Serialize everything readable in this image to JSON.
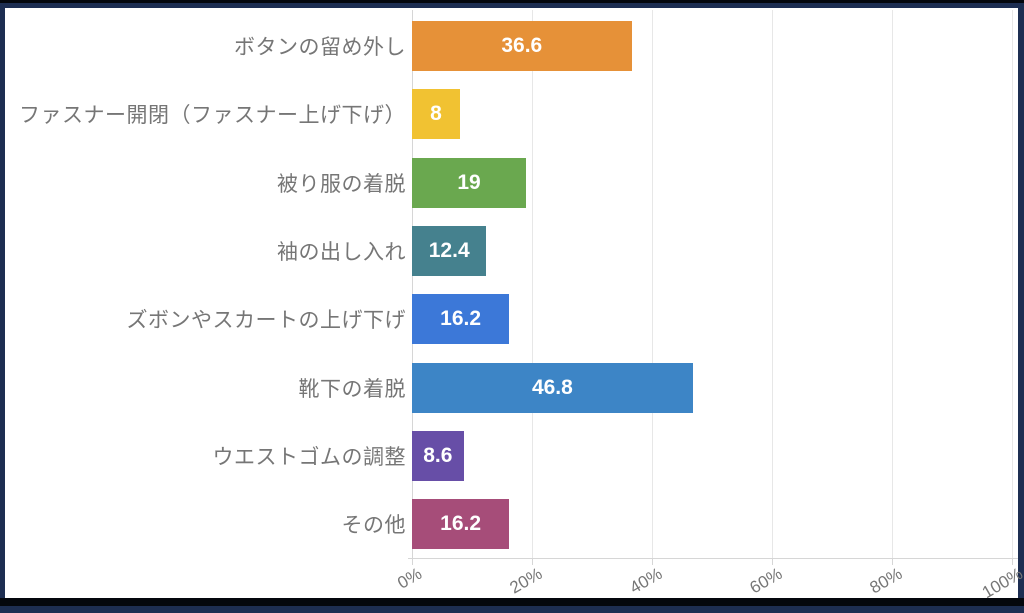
{
  "chart_data": {
    "type": "bar",
    "orientation": "horizontal",
    "title": "",
    "categories": [
      "ボタンの留め外し",
      "ファスナー開閉（ファスナー上げ下げ）",
      "被り服の着脱",
      "袖の出し入れ",
      "ズボンやスカートの上げ下げ",
      "靴下の着脱",
      "ウエストゴムの調整",
      "その他"
    ],
    "values": [
      36.6,
      8,
      19,
      12.4,
      16.2,
      46.8,
      8.6,
      16.2
    ],
    "value_labels": [
      "36.6",
      "8",
      "19",
      "12.4",
      "16.2",
      "46.8",
      "8.6",
      "16.2"
    ],
    "bar_colors": [
      "#e69138",
      "#f1c232",
      "#6aa84f",
      "#45818e",
      "#3c78d8",
      "#3d85c6",
      "#674ea7",
      "#a64d79"
    ],
    "x_ticks": {
      "labels": [
        "0%",
        "20%",
        "40%",
        "60%",
        "80%",
        "100%"
      ],
      "values": [
        0,
        20,
        40,
        60,
        80,
        100
      ]
    },
    "xlim": [
      0,
      100
    ],
    "grid": "vertical",
    "legend_position": "none",
    "value_label_position": "inside-center"
  },
  "style": {
    "frame_color": "#1d2e52",
    "strip_color": "#04070d",
    "panel_background": "#ffffff",
    "label_color": "#767676",
    "value_label_color": "#ffffff",
    "gridline_color": "#e7e7e7",
    "axis_line_color": "#d6d6d6"
  }
}
